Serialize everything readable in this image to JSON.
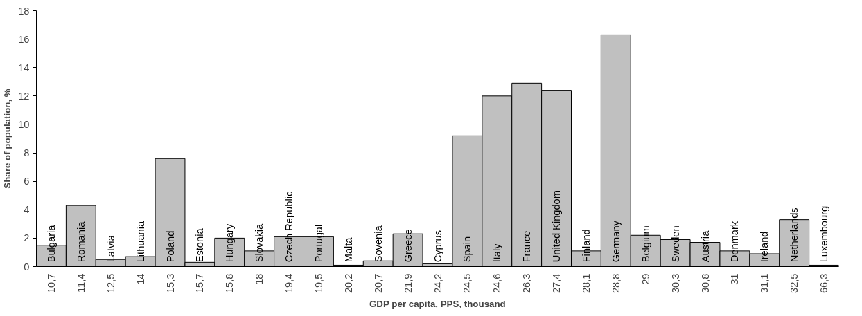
{
  "chart_data": {
    "type": "bar",
    "xlabel": "GDP per capita, PPS, thousand",
    "ylabel": "Share of population, %",
    "categories": [
      "10,7",
      "11,4",
      "12,5",
      "14",
      "15,3",
      "15,7",
      "15,8",
      "18",
      "19,4",
      "19,5",
      "20,2",
      "20,7",
      "21,9",
      "24,2",
      "24,5",
      "24,6",
      "26,3",
      "27,4",
      "28,1",
      "28,8",
      "29",
      "30,3",
      "30,8",
      "31",
      "31,1",
      "32,5",
      "66,3"
    ],
    "values": [
      1.5,
      4.3,
      0.5,
      0.7,
      7.6,
      0.3,
      2.0,
      1.1,
      2.1,
      2.1,
      0.1,
      0.4,
      2.3,
      0.2,
      9.2,
      12.0,
      12.9,
      12.4,
      1.1,
      16.3,
      2.2,
      1.9,
      1.7,
      1.1,
      0.9,
      3.3,
      0.1
    ],
    "color": "#c0c0c0",
    "ylim": [
      0,
      18
    ],
    "yticks": [
      0,
      2,
      4,
      6,
      8,
      10,
      12,
      14,
      16,
      18
    ],
    "grid": false,
    "annotations": [
      "Bulgaria",
      "Romania",
      "Latvia",
      "Lithuania",
      "Poland",
      "Estonia",
      "Hungary",
      "Slovakia",
      "Czech Republic",
      "Portugal",
      "Malta",
      "Sovenia",
      "Greece",
      "Cyprus",
      "Spain",
      "Italy",
      "France",
      "United Kingdom",
      "Finland",
      "Germany",
      "Belgium",
      "Sweden",
      "Austria",
      "Denmark",
      "Ireland",
      "Netherlands",
      "Luxembourg"
    ]
  }
}
